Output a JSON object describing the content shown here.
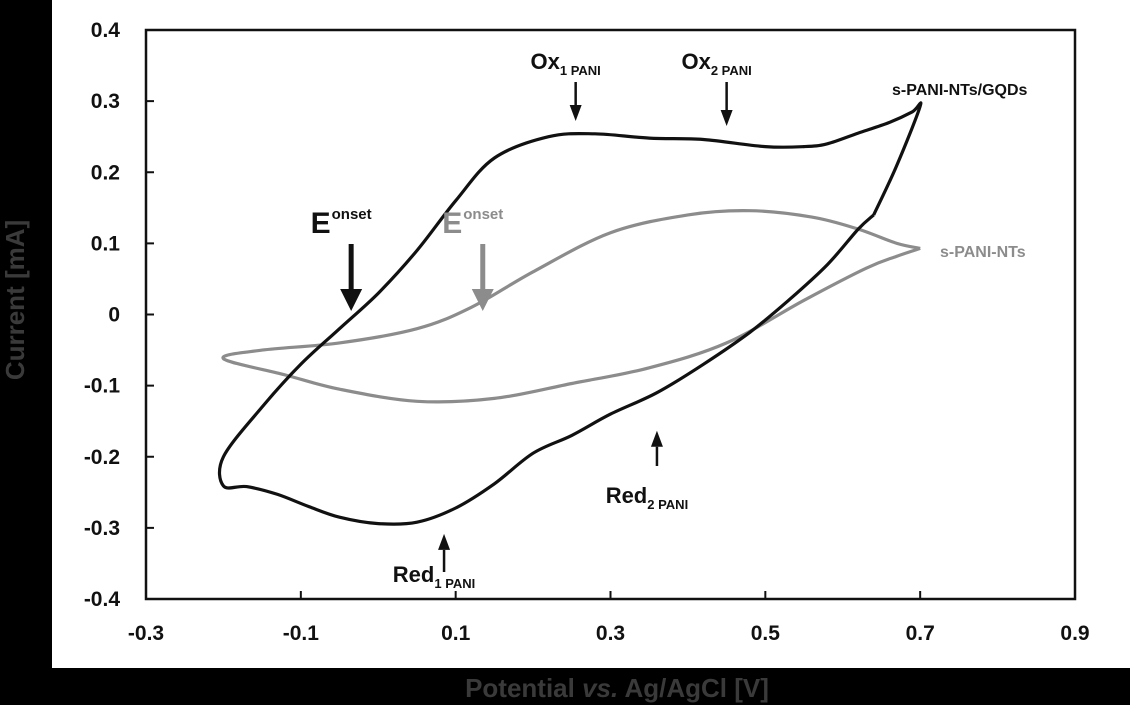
{
  "chart_data": {
    "type": "line",
    "xlabel": "Potential vs. Ag/AgCl [V]",
    "xlabel_parts": [
      "Potential ",
      "vs.",
      " Ag/AgCl [V]"
    ],
    "ylabel": "Current [mA]",
    "xlim": [
      -0.3,
      0.9
    ],
    "ylim": [
      -0.4,
      0.4
    ],
    "xticks": [
      "-0.3",
      "-0.1",
      "0.1",
      "0.3",
      "0.5",
      "0.7",
      "0.9"
    ],
    "yticks": [
      "0.4",
      "0.3",
      "0.2",
      "0.1",
      "0",
      "-0.1",
      "-0.2",
      "-0.3",
      "-0.4"
    ],
    "grid": false,
    "series": [
      {
        "name": "s-PANI-NTs/GQDs",
        "color": "#111111",
        "x": [
          0.64,
          0.67,
          0.7,
          0.69,
          0.66,
          0.62,
          0.58,
          0.55,
          0.5,
          0.42,
          0.35,
          0.28,
          0.22,
          0.15,
          0.1,
          0.05,
          0.0,
          -0.05,
          -0.1,
          -0.15,
          -0.2,
          -0.2,
          -0.17,
          -0.13,
          -0.09,
          -0.05,
          0.0,
          0.05,
          0.1,
          0.15,
          0.2,
          0.25,
          0.3,
          0.36,
          0.42,
          0.48,
          0.53,
          0.58,
          0.62,
          0.64
        ],
        "y": [
          0.14,
          0.21,
          0.293,
          0.285,
          0.27,
          0.255,
          0.24,
          0.236,
          0.236,
          0.246,
          0.248,
          0.254,
          0.25,
          0.22,
          0.16,
          0.09,
          0.03,
          -0.02,
          -0.07,
          -0.13,
          -0.2,
          -0.241,
          -0.242,
          -0.253,
          -0.27,
          -0.285,
          -0.294,
          -0.292,
          -0.272,
          -0.238,
          -0.195,
          -0.17,
          -0.14,
          -0.11,
          -0.07,
          -0.025,
          0.02,
          0.07,
          0.12,
          0.14
        ]
      },
      {
        "name": "s-PANI-NTs",
        "color": "#8c8c8c",
        "x": [
          0.7,
          0.67,
          0.62,
          0.56,
          0.48,
          0.4,
          0.3,
          0.2,
          0.12,
          0.05,
          -0.05,
          -0.15,
          -0.2,
          -0.12,
          -0.05,
          0.05,
          0.15,
          0.25,
          0.35,
          0.45,
          0.55,
          0.63,
          0.67,
          0.7
        ],
        "y": [
          0.093,
          0.1,
          0.12,
          0.137,
          0.146,
          0.14,
          0.115,
          0.06,
          0.01,
          -0.02,
          -0.04,
          -0.05,
          -0.062,
          -0.085,
          -0.105,
          -0.122,
          -0.118,
          -0.097,
          -0.075,
          -0.04,
          0.02,
          0.065,
          0.082,
          0.093
        ]
      }
    ],
    "annotations": [
      {
        "text": "Ox",
        "sub": "1 PANI",
        "x": 0.255,
        "y": 0.355,
        "arrow_to_y": 0.272,
        "direction": "down"
      },
      {
        "text": "Ox",
        "sub": "2 PANI",
        "x": 0.45,
        "y": 0.355,
        "arrow_to_y": 0.265,
        "direction": "down"
      },
      {
        "text": "Red",
        "sub": "2 PANI",
        "x": 0.36,
        "y": -0.27,
        "arrow_to_y": -0.155,
        "direction": "up"
      },
      {
        "text": "Red",
        "sub": "1 PANI",
        "x": 0.085,
        "y": -0.36,
        "arrow_to_y": -0.3,
        "direction": "up"
      },
      {
        "text": "E",
        "sup": "onset",
        "series": 0,
        "x": -0.035,
        "y": 0.12,
        "arrow_to_y": 0.005,
        "direction": "down"
      },
      {
        "text": "E",
        "sup": "onset",
        "series": 1,
        "x": 0.135,
        "y": 0.12,
        "arrow_to_y": 0.005,
        "direction": "down"
      }
    ],
    "series_labels": [
      {
        "series": 0,
        "text": "s-PANI-NTs/GQDs"
      },
      {
        "series": 1,
        "text": "s-PANI-NTs"
      }
    ]
  }
}
